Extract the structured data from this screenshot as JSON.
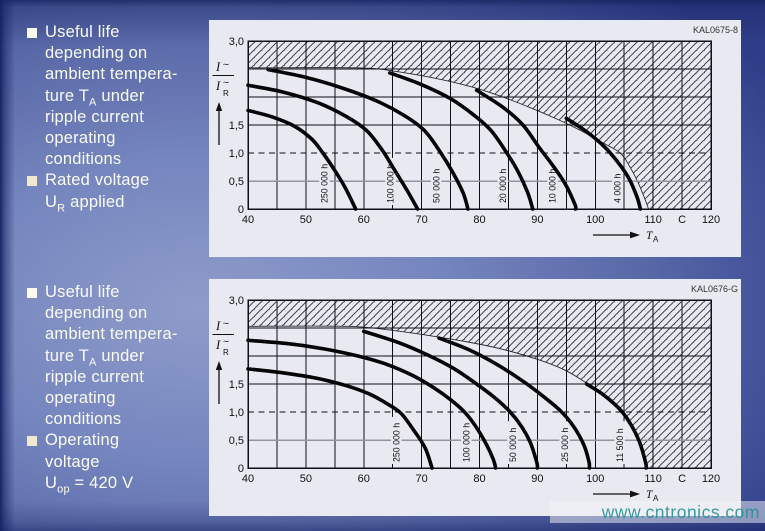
{
  "sidebar": {
    "blocks": [
      {
        "items": [
          {
            "bullet_color": "#fafaf0",
            "lines": [
              [
                "Useful life"
              ],
              [
                "depending on"
              ],
              [
                "ambient tempera-"
              ],
              [
                "ture T",
                {
                  "sub": "A"
                },
                " under"
              ],
              [
                "ripple current"
              ],
              [
                "operating"
              ],
              [
                "conditions"
              ]
            ]
          },
          {
            "bullet_color": "#efe9cf",
            "lines": [
              [
                "Rated voltage"
              ],
              [
                "U",
                {
                  "sub": "R"
                },
                " applied"
              ]
            ]
          }
        ]
      },
      {
        "items": [
          {
            "bullet_color": "#fafaf0",
            "lines": [
              [
                "Useful life"
              ],
              [
                "depending on"
              ],
              [
                "ambient tempera-"
              ],
              [
                "ture T",
                {
                  "sub": "A"
                },
                " under"
              ],
              [
                "ripple current"
              ],
              [
                "operating"
              ],
              [
                "conditions"
              ]
            ]
          },
          {
            "bullet_color": "#efe9cf",
            "lines": [
              [
                "Operating"
              ],
              [
                "voltage"
              ],
              [
                "U",
                {
                  "sub": "op"
                },
                " = 420 V"
              ]
            ]
          }
        ]
      }
    ]
  },
  "watermark": {
    "text": "www.cntronics.com",
    "color": "#2b9698"
  },
  "chart_data": {
    "type": "line",
    "charts": [
      {
        "panel_label": "KAL0675-8",
        "xlabel": "T_A (C)",
        "ylabel": "I~/I~R",
        "xlim": [
          40,
          120
        ],
        "ylim": [
          0,
          3
        ],
        "x_ticks": [
          {
            "v": 40,
            "t": "40"
          },
          {
            "v": 50,
            "t": "50"
          },
          {
            "v": 60,
            "t": "60"
          },
          {
            "v": 70,
            "t": "70"
          },
          {
            "v": 80,
            "t": "80"
          },
          {
            "v": 90,
            "t": "90"
          },
          {
            "v": 100,
            "t": "100"
          },
          {
            "v": 110,
            "t": "110"
          },
          {
            "v": 115,
            "t": "C"
          },
          {
            "v": 120,
            "t": "120"
          }
        ],
        "y_ticks": [
          {
            "v": 3,
            "t": "3,0"
          },
          {
            "v": 1.5,
            "t": "1,5"
          },
          {
            "v": 1,
            "t": "1,0"
          },
          {
            "v": 0.5,
            "t": "0,5"
          },
          {
            "v": 0,
            "t": "0"
          }
        ],
        "hlines": [
          {
            "v": 2.5,
            "style": "solid"
          },
          {
            "v": 2,
            "style": "solid"
          },
          {
            "v": 1.5,
            "style": "solid"
          },
          {
            "v": 1,
            "style": "dashed"
          },
          {
            "v": 0.5,
            "style": "grey"
          }
        ],
        "x_axis_arrow_label": {
          "text": "T",
          "sub": "A"
        },
        "y_axis_fraction": {
          "num": "I",
          "num_sup": "∼",
          "den": "I",
          "den_sup": "∼",
          "den_sub": "R"
        },
        "boundary": [
          [
            40,
            2.52
          ],
          [
            59,
            2.52
          ],
          [
            66,
            2.45
          ],
          [
            73,
            2.32
          ],
          [
            79,
            2.17
          ],
          [
            84,
            2.0
          ],
          [
            89,
            1.8
          ],
          [
            93.5,
            1.6
          ],
          [
            97.5,
            1.4
          ],
          [
            101,
            1.2
          ],
          [
            104.3,
            1.0
          ],
          [
            106,
            0.75
          ],
          [
            107.5,
            0.45
          ],
          [
            108.8,
            0.12
          ],
          [
            109.2,
            0
          ]
        ],
        "curves": [
          {
            "label": "250 000 h",
            "label_x": 53.6,
            "points": [
              [
                40,
                1.76
              ],
              [
                44,
                1.65
              ],
              [
                48,
                1.48
              ],
              [
                51,
                1.25
              ],
              [
                52.8,
                1.02
              ],
              [
                54.8,
                0.72
              ],
              [
                56.8,
                0.38
              ],
              [
                58.6,
                0
              ]
            ]
          },
          {
            "label": "100 000 h",
            "label_x": 65.0,
            "points": [
              [
                40,
                2.21
              ],
              [
                46,
                2.09
              ],
              [
                52,
                1.9
              ],
              [
                57,
                1.65
              ],
              [
                60.5,
                1.4
              ],
              [
                63.2,
                1.05
              ],
              [
                65.3,
                0.7
              ],
              [
                67.5,
                0.33
              ],
              [
                69.3,
                0
              ]
            ]
          },
          {
            "label": "50 000 h",
            "label_x": 72.9,
            "points": [
              [
                43.5,
                2.49
              ],
              [
                50,
                2.35
              ],
              [
                56,
                2.17
              ],
              [
                62,
                1.94
              ],
              [
                67,
                1.67
              ],
              [
                70.5,
                1.4
              ],
              [
                73.2,
                1.02
              ],
              [
                75.4,
                0.65
              ],
              [
                77.2,
                0.28
              ],
              [
                78,
                0
              ]
            ]
          },
          {
            "label": "20 000 h",
            "label_x": 84.4,
            "points": [
              [
                64.5,
                2.43
              ],
              [
                70,
                2.22
              ],
              [
                75,
                1.97
              ],
              [
                79,
                1.68
              ],
              [
                82,
                1.4
              ],
              [
                84.6,
                1.02
              ],
              [
                86.6,
                0.68
              ],
              [
                88.3,
                0.3
              ],
              [
                89.2,
                0
              ]
            ]
          },
          {
            "label": "10 000 h",
            "label_x": 93.0,
            "points": [
              [
                79.5,
                2.12
              ],
              [
                84,
                1.82
              ],
              [
                87.5,
                1.5
              ],
              [
                90.3,
                1.1
              ],
              [
                92.5,
                0.8
              ],
              [
                94.8,
                0.45
              ],
              [
                96.5,
                0.08
              ],
              [
                96.6,
                0
              ]
            ]
          },
          {
            "label": "4 000 h",
            "label_x": 104.2,
            "points": [
              [
                95,
                1.62
              ],
              [
                98.5,
                1.38
              ],
              [
                101.5,
                1.12
              ],
              [
                103.8,
                0.85
              ],
              [
                105.8,
                0.55
              ],
              [
                107.2,
                0.22
              ],
              [
                107.8,
                0
              ]
            ]
          }
        ]
      },
      {
        "panel_label": "KAL0676-G",
        "xlabel": "T_A (C)",
        "ylabel": "I~/I~R",
        "xlim": [
          40,
          120
        ],
        "ylim": [
          0,
          3
        ],
        "x_ticks": [
          {
            "v": 40,
            "t": "40"
          },
          {
            "v": 50,
            "t": "50"
          },
          {
            "v": 60,
            "t": "60"
          },
          {
            "v": 70,
            "t": "70"
          },
          {
            "v": 80,
            "t": "80"
          },
          {
            "v": 90,
            "t": "90"
          },
          {
            "v": 100,
            "t": "100"
          },
          {
            "v": 110,
            "t": "110"
          },
          {
            "v": 115,
            "t": "C"
          },
          {
            "v": 120,
            "t": "120"
          }
        ],
        "y_ticks": [
          {
            "v": 3,
            "t": "3,0"
          },
          {
            "v": 1.5,
            "t": "1,5"
          },
          {
            "v": 1,
            "t": "1,0"
          },
          {
            "v": 0.5,
            "t": "0,5"
          },
          {
            "v": 0,
            "t": "0"
          }
        ],
        "hlines": [
          {
            "v": 2.5,
            "style": "solid"
          },
          {
            "v": 2,
            "style": "solid"
          },
          {
            "v": 1.5,
            "style": "solid"
          },
          {
            "v": 1,
            "style": "dashed"
          },
          {
            "v": 0.5,
            "style": "grey"
          }
        ],
        "x_axis_arrow_label": {
          "text": "T",
          "sub": "A"
        },
        "y_axis_fraction": {
          "num": "I",
          "num_sup": "∼",
          "den": "I",
          "den_sup": "∼",
          "den_sub": "R"
        },
        "boundary": [
          [
            40,
            2.53
          ],
          [
            57,
            2.53
          ],
          [
            64,
            2.47
          ],
          [
            71,
            2.37
          ],
          [
            78,
            2.25
          ],
          [
            84,
            2.12
          ],
          [
            90,
            1.94
          ],
          [
            94.5,
            1.76
          ],
          [
            98,
            1.55
          ],
          [
            101.5,
            1.28
          ],
          [
            104,
            1.05
          ],
          [
            105.8,
            0.82
          ],
          [
            107.3,
            0.52
          ],
          [
            108.6,
            0.2
          ],
          [
            109.1,
            0
          ]
        ],
        "curves": [
          {
            "label": "250 000 h",
            "label_x": 66.0,
            "points": [
              [
                40,
                1.77
              ],
              [
                46,
                1.7
              ],
              [
                52,
                1.6
              ],
              [
                57,
                1.47
              ],
              [
                61,
                1.32
              ],
              [
                64,
                1.15
              ],
              [
                66.4,
                0.98
              ],
              [
                68.6,
                0.68
              ],
              [
                70.6,
                0.36
              ],
              [
                71.8,
                0
              ]
            ]
          },
          {
            "label": "100 000 h",
            "label_x": 78.1,
            "points": [
              [
                40,
                2.28
              ],
              [
                47,
                2.22
              ],
              [
                53,
                2.13
              ],
              [
                59,
                2.0
              ],
              [
                64,
                1.85
              ],
              [
                68.5,
                1.65
              ],
              [
                72,
                1.44
              ],
              [
                75,
                1.22
              ],
              [
                77.4,
                1.0
              ],
              [
                79.3,
                0.75
              ],
              [
                81.2,
                0.42
              ],
              [
                82.4,
                0.15
              ],
              [
                82.8,
                0
              ]
            ]
          },
          {
            "label": "50 000 h",
            "label_x": 86.1,
            "points": [
              [
                60,
                2.44
              ],
              [
                66,
                2.24
              ],
              [
                71,
                2.02
              ],
              [
                75.5,
                1.78
              ],
              [
                79.5,
                1.5
              ],
              [
                82.7,
                1.25
              ],
              [
                85.3,
                1.0
              ],
              [
                87.2,
                0.75
              ],
              [
                88.8,
                0.45
              ],
              [
                89.9,
                0.1
              ],
              [
                90,
                0
              ]
            ]
          },
          {
            "label": "25 000 h",
            "label_x": 95.1,
            "points": [
              [
                73,
                2.32
              ],
              [
                78,
                2.12
              ],
              [
                83,
                1.85
              ],
              [
                87.5,
                1.55
              ],
              [
                91,
                1.28
              ],
              [
                94,
                1.02
              ],
              [
                96.2,
                0.75
              ],
              [
                98,
                0.42
              ],
              [
                98.9,
                0.12
              ],
              [
                99,
                0
              ]
            ]
          },
          {
            "label": "11 500 h",
            "label_x": 104.6,
            "points": [
              [
                98.5,
                1.5
              ],
              [
                101.5,
                1.3
              ],
              [
                104.5,
                1.02
              ],
              [
                106.3,
                0.75
              ],
              [
                107.7,
                0.45
              ],
              [
                108.7,
                0.1
              ],
              [
                108.8,
                0
              ]
            ]
          }
        ]
      }
    ]
  }
}
